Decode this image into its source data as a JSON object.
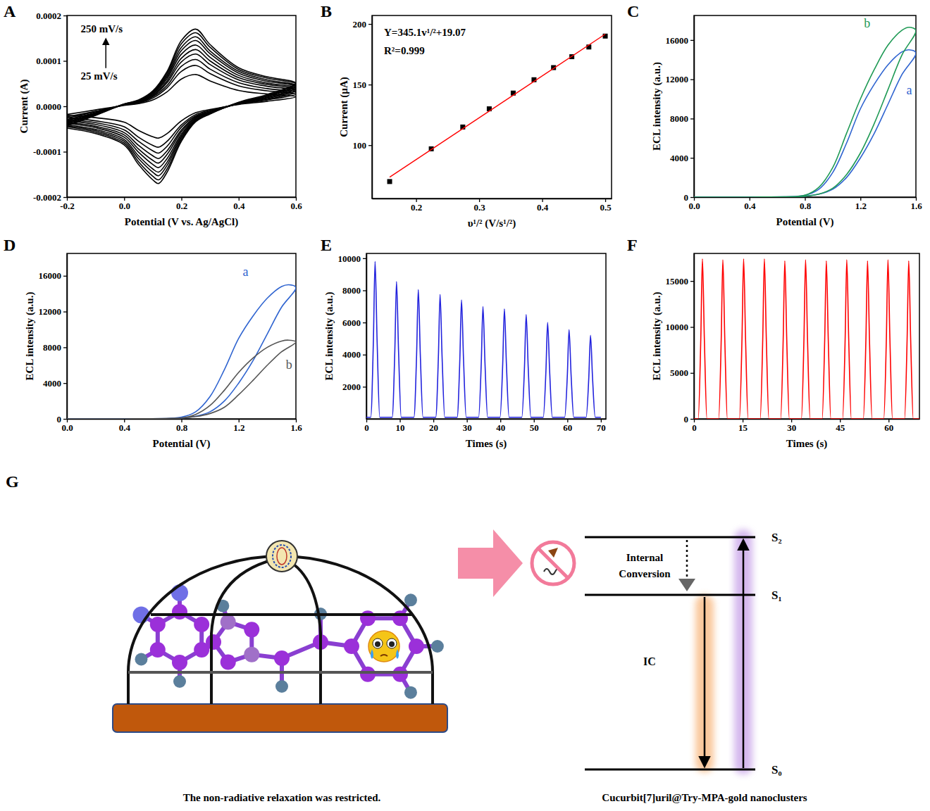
{
  "chart_data": [
    {
      "panel": "A",
      "type": "line",
      "color": "#000000",
      "x_label": "Potential (V vs. Ag/AgCl)",
      "y_label": "Current (A)",
      "annotations": [
        "250 mV/s",
        "25 mV/s"
      ],
      "xlim": [
        -0.2,
        0.6
      ],
      "xticks": [
        -0.2,
        {
          "value": 0,
          "label": "0.0"
        },
        0.2,
        0.4,
        0.6
      ],
      "ylim": [
        -0.0002,
        0.0002
      ],
      "yticks": [
        -0.0002,
        -0.0001,
        {
          "value": 0,
          "label": "0.0000"
        },
        0.0001,
        0.0002
      ],
      "x": [
        -0.2,
        -0.1,
        0,
        0.05,
        0.1,
        0.15,
        0.2,
        0.25,
        0.3,
        0.4,
        0.5,
        0.6,
        0.5,
        0.4,
        0.3,
        0.25,
        0.2,
        0.15,
        0.12,
        0.1,
        0.05,
        0,
        -0.1,
        -0.2
      ],
      "series": [
        {
          "values": [
            -1.8e-05,
            -8e-06,
            2e-06,
            6e-06,
            1.4e-05,
            3.2e-05,
            6e-05,
            7e-05,
            5.6e-05,
            3.5e-05,
            2.7e-05,
            2.1e-05,
            1.1e-05,
            4e-06,
            -7e-06,
            -1.4e-05,
            -3.2e-05,
            -6e-05,
            -7e-05,
            -6.7e-05,
            -5.3e-05,
            -3.5e-05,
            -2.5e-05,
            -2e-05
          ]
        },
        {
          "values": [
            -2.3e-05,
            -1.1e-05,
            3e-06,
            7e-06,
            1.8e-05,
            4.1e-05,
            7.7e-05,
            9e-05,
            7.2e-05,
            4.5e-05,
            3.4e-05,
            2.7e-05,
            1.4e-05,
            5e-06,
            -9e-06,
            -1.8e-05,
            -4.1e-05,
            -7.7e-05,
            -9e-05,
            -8.6e-05,
            -6.8e-05,
            -4.5e-05,
            -3.2e-05,
            -2.5e-05
          ]
        },
        {
          "values": [
            -2.6e-05,
            -1.2e-05,
            3e-06,
            8e-06,
            2.1e-05,
            4.6e-05,
            8.8e-05,
            0.000103,
            8.2e-05,
            5.2e-05,
            3.9e-05,
            3.1e-05,
            1.5e-05,
            5e-06,
            -1e-05,
            -2.1e-05,
            -4.6e-05,
            -8.8e-05,
            -0.000103,
            -9.8e-05,
            -7.7e-05,
            -5.2e-05,
            -3.6e-05,
            -2.9e-05
          ]
        },
        {
          "values": [
            -2.9e-05,
            -1.4e-05,
            3e-06,
            9e-06,
            2.3e-05,
            5.2e-05,
            9.8e-05,
            0.000115,
            9.2e-05,
            5.8e-05,
            4.4e-05,
            3.5e-05,
            1.7e-05,
            6e-06,
            -1.2e-05,
            -2.3e-05,
            -5.2e-05,
            -9.8e-05,
            -0.000115,
            -0.000109,
            -8.6e-05,
            -5.8e-05,
            -4e-05,
            -3.2e-05
          ]
        },
        {
          "values": [
            -3.1e-05,
            -1.5e-05,
            4e-06,
            1e-05,
            2.5e-05,
            5.6e-05,
            0.000106,
            0.000125,
            0.0001,
            6.3e-05,
            4.8e-05,
            3.8e-05,
            1.9e-05,
            6e-06,
            -1.3e-05,
            -2.5e-05,
            -5.6e-05,
            -0.000106,
            -0.000125,
            -0.000119,
            -9.4e-05,
            -6.3e-05,
            -4.4e-05,
            -3.5e-05
          ]
        },
        {
          "values": [
            -3.4e-05,
            -1.6e-05,
            4e-06,
            1.1e-05,
            2.7e-05,
            6.1e-05,
            0.000115,
            0.000135,
            0.000108,
            6.8e-05,
            5.1e-05,
            4.1e-05,
            2e-05,
            7e-06,
            -1.4e-05,
            -2.7e-05,
            -6.1e-05,
            -0.000115,
            -0.000135,
            -0.000128,
            -0.000101,
            -6.8e-05,
            -4.7e-05,
            -3.8e-05
          ]
        },
        {
          "values": [
            -3.6e-05,
            -1.7e-05,
            4e-06,
            1.2e-05,
            2.9e-05,
            6.5e-05,
            0.000123,
            0.000145,
            0.000116,
            7.3e-05,
            5.5e-05,
            4.4e-05,
            2.2e-05,
            7e-06,
            -1.5e-05,
            -2.9e-05,
            -6.5e-05,
            -0.000123,
            -0.000145,
            -0.000138,
            -0.000109,
            -7.3e-05,
            -5.1e-05,
            -4.1e-05
          ]
        },
        {
          "values": [
            -3.8e-05,
            -1.8e-05,
            5e-06,
            1.2e-05,
            3.1e-05,
            6.9e-05,
            0.00013,
            0.000153,
            0.000122,
            7.7e-05,
            5.8e-05,
            4.6e-05,
            2.3e-05,
            8e-06,
            -1.5e-05,
            -3.1e-05,
            -6.9e-05,
            -0.00013,
            -0.000153,
            -0.000145,
            -0.000115,
            -7.7e-05,
            -5.4e-05,
            -4.3e-05
          ]
        },
        {
          "values": [
            -4.1e-05,
            -1.9e-05,
            5e-06,
            1.3e-05,
            3.2e-05,
            7.3e-05,
            0.000138,
            0.000162,
            0.00013,
            8.1e-05,
            6.2e-05,
            4.9e-05,
            2.4e-05,
            8e-06,
            -1.6e-05,
            -3.2e-05,
            -7.3e-05,
            -0.000138,
            -0.000162,
            -0.000154,
            -0.000122,
            -8.1e-05,
            -5.7e-05,
            -4.5e-05
          ]
        },
        {
          "values": [
            -4.3e-05,
            -2e-05,
            5e-06,
            1.4e-05,
            3.4e-05,
            7.7e-05,
            0.000145,
            0.00017,
            0.000136,
            8.5e-05,
            6.5e-05,
            5.1e-05,
            2.6e-05,
            9e-06,
            -1.7e-05,
            -3.4e-05,
            -7.7e-05,
            -0.000145,
            -0.00017,
            -0.000162,
            -0.000128,
            -8.5e-05,
            -6e-05,
            -4.8e-05
          ]
        }
      ]
    },
    {
      "panel": "B",
      "type": "scatter",
      "x_label": "υ¹/² (V/s¹/²)",
      "y_label": "Current (µA)",
      "annotations": [
        "Y=345.1v¹/²+19.07",
        "R²=0.999"
      ],
      "xlim": [
        0.13,
        0.51
      ],
      "xticks": [
        0.2,
        0.3,
        0.4,
        0.5
      ],
      "ylim": [
        56,
        207
      ],
      "yticks": [
        100,
        150,
        200
      ],
      "series": [
        {
          "type": "scatter",
          "marker": "square",
          "color": "#000000",
          "x": [
            0.158,
            0.224,
            0.274,
            0.316,
            0.354,
            0.387,
            0.418,
            0.447,
            0.474,
            0.5
          ],
          "values": [
            70,
            97,
            115,
            130,
            143,
            154,
            164,
            173,
            181,
            190
          ]
        },
        {
          "type": "line",
          "color": "#ff0000",
          "x": [
            0.158,
            0.5
          ],
          "values": [
            73.6,
            191.6
          ]
        }
      ]
    },
    {
      "panel": "C",
      "type": "line",
      "x_label": "Potential (V)",
      "y_label": "ECL intensity (a.u.)",
      "xlim": [
        0,
        1.6
      ],
      "xticks": [
        {
          "value": 0,
          "label": "0.0"
        },
        0.4,
        0.8,
        1.2,
        1.6
      ],
      "ylim": [
        0,
        18500
      ],
      "yticks": [
        0,
        4000,
        8000,
        12000,
        16000
      ],
      "series": [
        {
          "name": "a",
          "color": "#2f64d0",
          "x": [
            0,
            0.4,
            0.8,
            0.9,
            1.0,
            1.1,
            1.2,
            1.3,
            1.4,
            1.5,
            1.6,
            1.55,
            1.5,
            1.4,
            1.3,
            1.2,
            1.1,
            1.0,
            0.9,
            0.8,
            0.4,
            0
          ],
          "values": [
            0,
            0,
            100,
            300,
            800,
            2000,
            4000,
            6500,
            9500,
            12500,
            14700,
            15000,
            14800,
            13500,
            11500,
            9000,
            5500,
            2500,
            800,
            200,
            0,
            0
          ]
        },
        {
          "name": "b",
          "color": "#1f9a55",
          "x": [
            0,
            0.4,
            0.8,
            0.9,
            1.0,
            1.1,
            1.2,
            1.3,
            1.4,
            1.5,
            1.6,
            1.55,
            1.5,
            1.4,
            1.3,
            1.2,
            1.1,
            1.0,
            0.9,
            0.8,
            0.4,
            0
          ],
          "values": [
            0,
            0,
            100,
            300,
            900,
            2300,
            4500,
            7500,
            11000,
            14500,
            17000,
            17300,
            17000,
            15500,
            13000,
            10000,
            6500,
            3000,
            1000,
            200,
            0,
            0
          ]
        }
      ]
    },
    {
      "panel": "D",
      "type": "line",
      "x_label": "Potential (V)",
      "y_label": "ECL intensity (a.u.)",
      "xlim": [
        0,
        1.6
      ],
      "xticks": [
        {
          "value": 0,
          "label": "0.0"
        },
        0.4,
        0.8,
        1.2,
        1.6
      ],
      "ylim": [
        0,
        18500
      ],
      "yticks": [
        0,
        4000,
        8000,
        12000,
        16000
      ],
      "series": [
        {
          "name": "a",
          "color": "#2f64d0",
          "x": [
            0,
            0.4,
            0.8,
            0.9,
            1.0,
            1.1,
            1.2,
            1.3,
            1.4,
            1.5,
            1.6,
            1.55,
            1.5,
            1.4,
            1.3,
            1.2,
            1.1,
            1.0,
            0.9,
            0.8,
            0.4,
            0
          ],
          "values": [
            0,
            0,
            100,
            300,
            800,
            2000,
            4000,
            6500,
            9500,
            12500,
            14700,
            15000,
            14800,
            13500,
            11500,
            9000,
            5500,
            2500,
            800,
            200,
            0,
            0
          ]
        },
        {
          "name": "b",
          "color": "#555555",
          "x": [
            0,
            0.4,
            0.8,
            0.9,
            1.0,
            1.1,
            1.2,
            1.3,
            1.4,
            1.5,
            1.6,
            1.55,
            1.5,
            1.4,
            1.3,
            1.2,
            1.1,
            1.0,
            0.9,
            0.8,
            0.4,
            0
          ],
          "values": [
            0,
            0,
            100,
            250,
            600,
            1300,
            2700,
            4300,
            6000,
            7500,
            8600,
            8800,
            8700,
            8000,
            6800,
            5200,
            3200,
            1500,
            500,
            100,
            0,
            0
          ]
        }
      ]
    },
    {
      "panel": "E",
      "type": "line",
      "x_label": "Times (s)",
      "y_label": "ECL intensity (a.u.)",
      "xlim": [
        0,
        71.5
      ],
      "xticks": [
        0,
        10,
        20,
        30,
        40,
        50,
        60,
        70
      ],
      "ylim": [
        0,
        10300
      ],
      "yticks": [
        2000,
        4000,
        6000,
        8000,
        10000
      ],
      "series": [
        {
          "color": "#2222dd",
          "x": [
            0,
            1.3,
            2.1,
            2.6,
            3.2,
            4.0,
            7.7,
            8.5,
            9.0,
            9.6,
            10.4,
            14.2,
            15.0,
            15.5,
            16.1,
            16.9,
            20.7,
            21.5,
            22.0,
            22.6,
            23.4,
            27.1,
            27.9,
            28.4,
            29.0,
            29.8,
            33.5,
            34.3,
            34.8,
            35.4,
            36.2,
            39.9,
            40.7,
            41.2,
            41.8,
            42.6,
            46.4,
            47.2,
            47.7,
            48.3,
            49.1,
            52.8,
            53.6,
            54.1,
            54.7,
            55.5,
            59.2,
            60.0,
            60.5,
            61.1,
            61.9,
            65.6,
            66.4,
            66.9,
            67.5,
            68.3,
            70
          ],
          "values": [
            100,
            100,
            4900,
            9800,
            4900,
            100,
            100,
            4275,
            8550,
            4275,
            100,
            100,
            4025,
            8050,
            4025,
            100,
            100,
            3875,
            7750,
            3875,
            100,
            100,
            3700,
            7400,
            3700,
            100,
            100,
            3500,
            7000,
            3500,
            100,
            100,
            3425,
            6850,
            3425,
            100,
            100,
            3250,
            6500,
            3250,
            100,
            100,
            3000,
            6000,
            3000,
            100,
            100,
            2775,
            5550,
            2775,
            100,
            100,
            2600,
            5200,
            2600,
            100,
            100
          ]
        }
      ]
    },
    {
      "panel": "F",
      "type": "line",
      "x_label": "Times (s)",
      "y_label": "ECL intensity (a.u.)",
      "xlim": [
        0,
        69.5
      ],
      "xticks": [
        0,
        15,
        30,
        45,
        60
      ],
      "ylim": [
        0,
        18000
      ],
      "yticks": [
        0,
        5000,
        10000,
        15000
      ],
      "series": [
        {
          "color": "#ff0000",
          "x": [
            0,
            1.3,
            2.1,
            2.6,
            3.2,
            4.0,
            7.6,
            8.4,
            8.9,
            9.5,
            10.3,
            14.0,
            14.8,
            15.3,
            15.9,
            16.7,
            20.4,
            21.2,
            21.7,
            22.3,
            23.1,
            26.7,
            27.5,
            28.0,
            28.6,
            29.4,
            33.1,
            33.9,
            34.4,
            35.0,
            35.8,
            39.5,
            40.3,
            40.8,
            41.4,
            42.2,
            45.8,
            46.6,
            47.1,
            47.7,
            48.5,
            52.2,
            53.0,
            53.5,
            54.1,
            54.9,
            58.5,
            59.3,
            59.8,
            60.4,
            61.2,
            64.9,
            65.7,
            66.2,
            66.8,
            67.6,
            69.5
          ],
          "values": [
            0,
            0,
            8700,
            17400,
            8700,
            0,
            0,
            8650,
            17300,
            8650,
            0,
            0,
            8700,
            17400,
            8700,
            0,
            0,
            8700,
            17400,
            8700,
            0,
            0,
            8600,
            17200,
            8600,
            0,
            0,
            8650,
            17300,
            8650,
            0,
            0,
            8600,
            17200,
            8600,
            0,
            0,
            8650,
            17300,
            8650,
            0,
            0,
            8600,
            17200,
            8600,
            0,
            0,
            8650,
            17300,
            8650,
            0,
            0,
            8600,
            17200,
            8600,
            0,
            0
          ]
        }
      ]
    }
  ],
  "diagram": {
    "panel": "G",
    "caption_left": "The non-radiative relaxation was restricted.",
    "internal_conversion": "Internal Conversion",
    "transition": "IC",
    "levels": [
      "S₂",
      "S₁",
      "S₀"
    ],
    "caption_right": "Cucurbit[7]uril@Try-MPA-gold nanoclusters"
  }
}
